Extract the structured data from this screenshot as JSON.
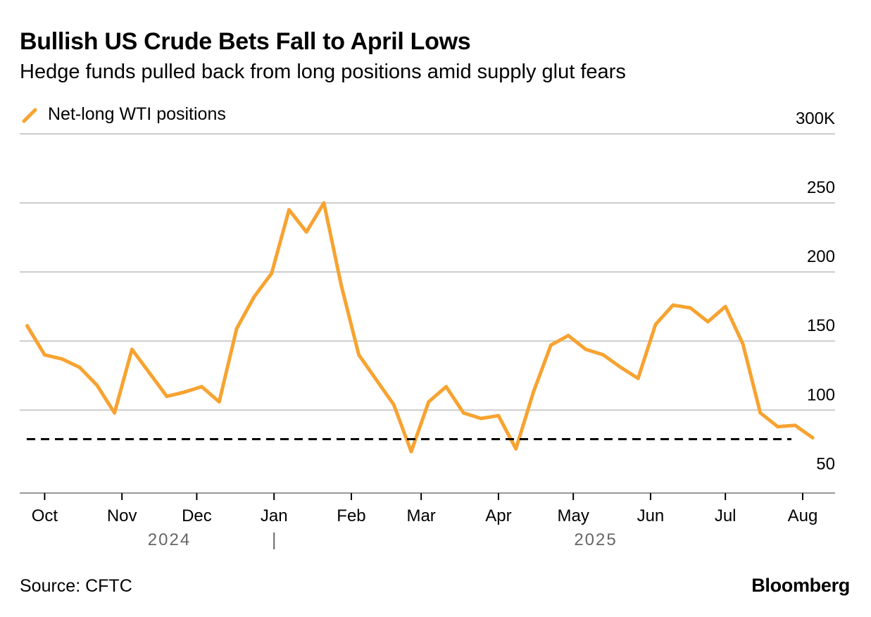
{
  "title": "Bullish US Crude Bets Fall to April Lows",
  "subtitle": "Hedge funds pulled back from long positions amid supply glut fears",
  "source": "Source: CFTC",
  "brand": "Bloomberg",
  "colors": {
    "series": "#F7A331",
    "grid": "#cccccc",
    "axis": "#999999",
    "reference": "#000000"
  },
  "chart_data": {
    "type": "line",
    "y_unit_suffix": "K",
    "ylim": [
      40,
      300
    ],
    "y_ticks": [
      50,
      100,
      150,
      200,
      250,
      300
    ],
    "y_tick_labels": [
      "50",
      "100",
      "150",
      "200",
      "250",
      "300K"
    ],
    "x_ticks": [
      "2024-10-01",
      "2024-11-01",
      "2024-12-01",
      "2025-01-01",
      "2025-02-01",
      "2025-03-01",
      "2025-04-01",
      "2025-05-01",
      "2025-06-01",
      "2025-07-01",
      "2025-08-01"
    ],
    "x_tick_labels": [
      "Oct",
      "Nov",
      "Dec",
      "Jan",
      "Feb",
      "Mar",
      "Apr",
      "May",
      "Jun",
      "Jul",
      "Aug"
    ],
    "year_labels": [
      {
        "label": "2024",
        "center": "2024-11-20"
      },
      {
        "label": "2025",
        "center": "2025-05-10"
      }
    ],
    "year_divider": "2025-01-01",
    "xlim": [
      "2024-09-21",
      "2025-08-14"
    ],
    "grid": true,
    "legend_position": "top-left",
    "reference_line": {
      "value": 79,
      "style": "dashed"
    },
    "series": [
      {
        "name": "Net-long WTI positions",
        "x": [
          "2024-09-24",
          "2024-10-01",
          "2024-10-08",
          "2024-10-15",
          "2024-10-22",
          "2024-10-29",
          "2024-11-05",
          "2024-11-12",
          "2024-11-19",
          "2024-11-26",
          "2024-12-03",
          "2024-12-10",
          "2024-12-17",
          "2024-12-24",
          "2024-12-31",
          "2025-01-07",
          "2025-01-14",
          "2025-01-21",
          "2025-01-28",
          "2025-02-04",
          "2025-02-11",
          "2025-02-18",
          "2025-02-25",
          "2025-03-04",
          "2025-03-11",
          "2025-03-18",
          "2025-03-25",
          "2025-04-01",
          "2025-04-08",
          "2025-04-15",
          "2025-04-22",
          "2025-04-29",
          "2025-05-06",
          "2025-05-13",
          "2025-05-20",
          "2025-05-27",
          "2025-06-03",
          "2025-06-10",
          "2025-06-17",
          "2025-06-24",
          "2025-07-01",
          "2025-07-08",
          "2025-07-15",
          "2025-07-22",
          "2025-07-29",
          "2025-08-05"
        ],
        "values": [
          161,
          140,
          137,
          131,
          118,
          98,
          144,
          127,
          110,
          113,
          117,
          106,
          159,
          182,
          199,
          245,
          229,
          250,
          190,
          140,
          122,
          104,
          70,
          106,
          117,
          98,
          94,
          96,
          72,
          113,
          147,
          154,
          144,
          140,
          131,
          123,
          162,
          176,
          174,
          164,
          175,
          148,
          98,
          88,
          89,
          80
        ]
      }
    ]
  }
}
